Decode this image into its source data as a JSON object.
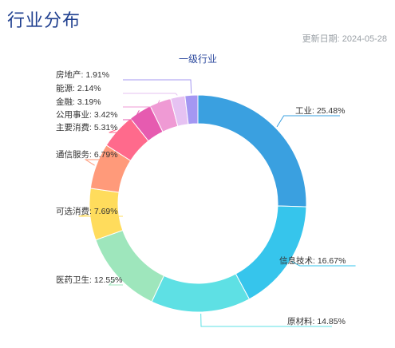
{
  "page": {
    "title": "行业分布",
    "update_label": "更新日期:",
    "update_date": "2024-05-28"
  },
  "chart_data": {
    "type": "pie",
    "subtype": "donut",
    "title": "一级行业",
    "legend": "none",
    "slices": [
      {
        "label": "工业",
        "value": 25.48,
        "text": "工业: 25.48%",
        "color": "#3aa0e0"
      },
      {
        "label": "信息技术",
        "value": 16.67,
        "text": "信息技术: 16.67%",
        "color": "#36c5ec"
      },
      {
        "label": "原材料",
        "value": 14.85,
        "text": "原材料: 14.85%",
        "color": "#5ee0e4"
      },
      {
        "label": "医药卫生",
        "value": 12.55,
        "text": "医药卫生: 12.55%",
        "color": "#9ee6bc"
      },
      {
        "label": "可选消费",
        "value": 7.69,
        "text": "可选消费: 7.69%",
        "color": "#ffdc5c"
      },
      {
        "label": "通信服务",
        "value": 6.79,
        "text": "通信服务: 6.79%",
        "color": "#ff9a7a"
      },
      {
        "label": "主要消费",
        "value": 5.31,
        "text": "主要消费: 5.31%",
        "color": "#ff6a8c"
      },
      {
        "label": "公用事业",
        "value": 3.42,
        "text": "公用事业: 3.42%",
        "color": "#e65bb0"
      },
      {
        "label": "金融",
        "value": 3.19,
        "text": "金融: 3.19%",
        "color": "#ef9ad4"
      },
      {
        "label": "能源",
        "value": 2.14,
        "text": "能源: 2.14%",
        "color": "#e6c2f2"
      },
      {
        "label": "房地产",
        "value": 1.91,
        "text": "房地产: 1.91%",
        "color": "#a497f2"
      }
    ]
  }
}
